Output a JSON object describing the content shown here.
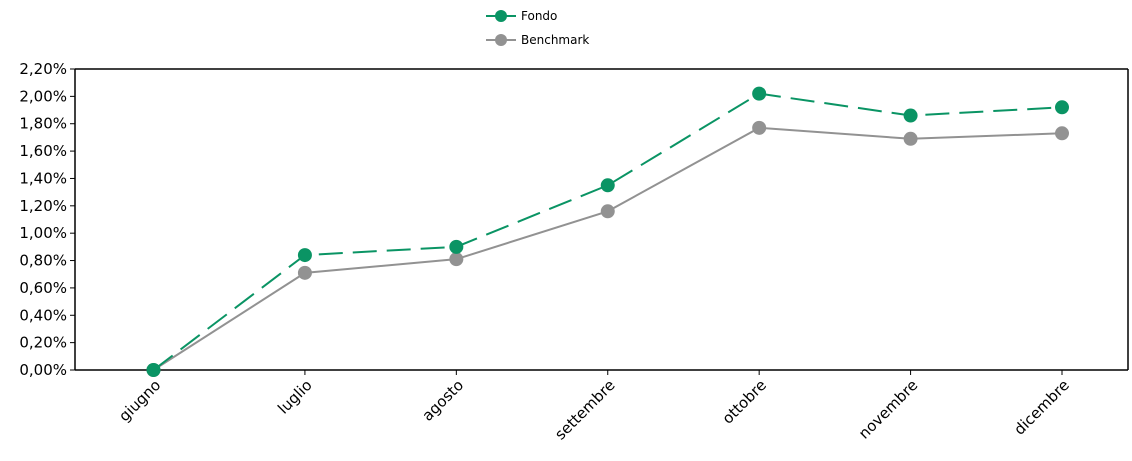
{
  "chart_data": {
    "type": "line",
    "categories": [
      "giugno",
      "luglio",
      "agosto",
      "settembre",
      "ottobre",
      "novembre",
      "dicembre"
    ],
    "series": [
      {
        "name": "Fondo",
        "color": "#0a9464",
        "line_style": "dashed",
        "values": [
          0.0,
          0.84,
          0.9,
          1.35,
          2.02,
          1.86,
          1.92
        ]
      },
      {
        "name": "Benchmark",
        "color": "#929292",
        "line_style": "solid",
        "values": [
          0.0,
          0.71,
          0.81,
          1.16,
          1.77,
          1.69,
          1.73
        ]
      }
    ],
    "y_ticks": [
      "0,00%",
      "0,20%",
      "0,40%",
      "0,60%",
      "0,80%",
      "1,00%",
      "1,20%",
      "1,40%",
      "1,60%",
      "1,80%",
      "2,00%",
      "2,20%"
    ],
    "ylim": [
      0,
      2.2
    ],
    "y_unit": "%",
    "grid": false,
    "legend_position": "top-center"
  }
}
